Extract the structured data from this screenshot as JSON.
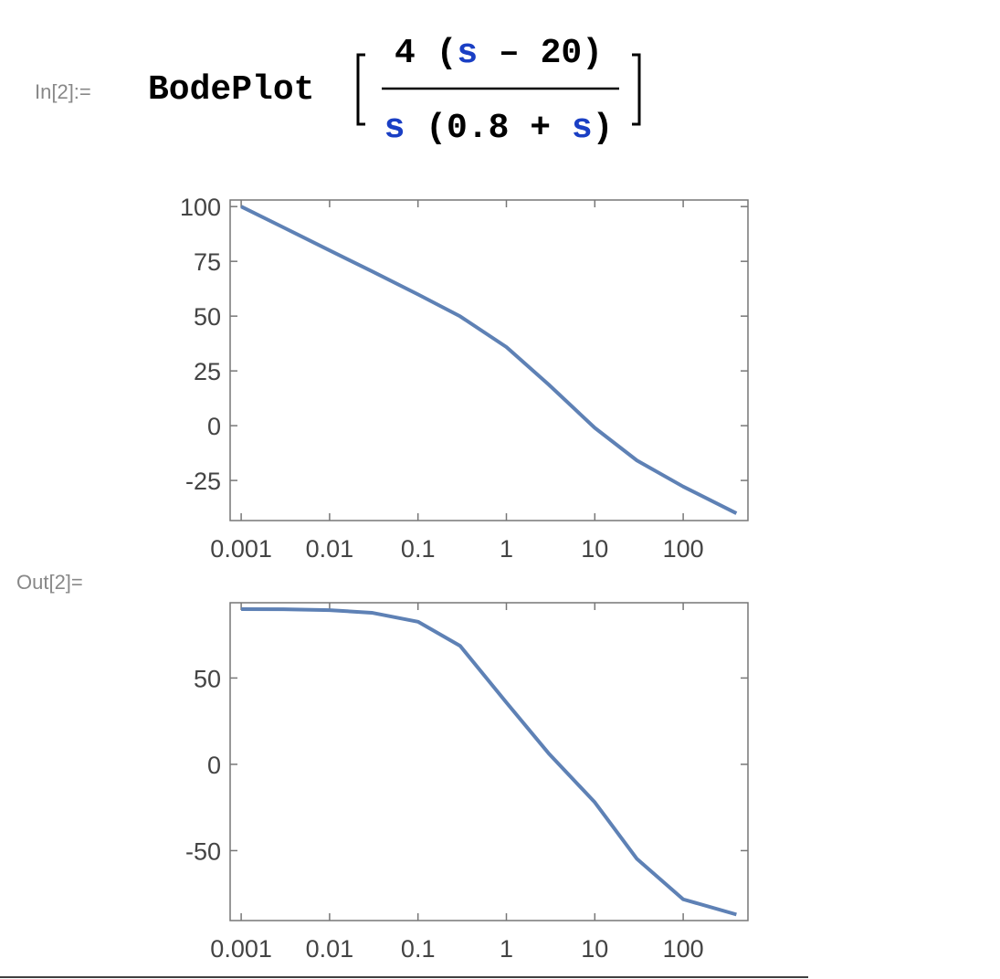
{
  "notebook": {
    "input_label": "In[2]:=",
    "output_label": "Out[2]=",
    "function": "BodePlot",
    "numerator": [
      "4 (",
      "s",
      " – 20)"
    ],
    "denominator": [
      "s",
      " (0.8 + ",
      "s",
      ")"
    ]
  },
  "chart_data": [
    {
      "type": "line",
      "log_x": true,
      "color": "#5e81b5",
      "x": [
        0.001,
        0.003,
        0.01,
        0.03,
        0.1,
        0.3,
        1,
        3,
        10,
        30,
        100,
        400
      ],
      "values": [
        100,
        90.5,
        80,
        70.5,
        59.9,
        49.9,
        35.9,
        18.8,
        -1.0,
        -15.9,
        -27.8,
        -40.0
      ],
      "xlim": [
        0.00075,
        540
      ],
      "xticks": [
        0.001,
        0.01,
        0.1,
        1,
        10,
        100
      ],
      "ylim": [
        -43.3,
        103
      ],
      "yticks": [
        -25,
        0,
        25,
        50,
        75,
        100
      ]
    },
    {
      "type": "line",
      "log_x": true,
      "color": "#5e81b5",
      "x": [
        0.001,
        0.003,
        0.01,
        0.03,
        0.1,
        0.3,
        1,
        3,
        10,
        30,
        100,
        400
      ],
      "values": [
        89.9,
        89.8,
        89.3,
        87.8,
        82.6,
        68.6,
        35.8,
        6.4,
        -22.0,
        -54.8,
        -78.2,
        -87.0
      ],
      "xlim": [
        0.00075,
        540
      ],
      "xticks": [
        0.001,
        0.01,
        0.1,
        1,
        10,
        100
      ],
      "ylim": [
        -90.5,
        93.6
      ],
      "yticks": [
        -50,
        0,
        50
      ]
    }
  ]
}
